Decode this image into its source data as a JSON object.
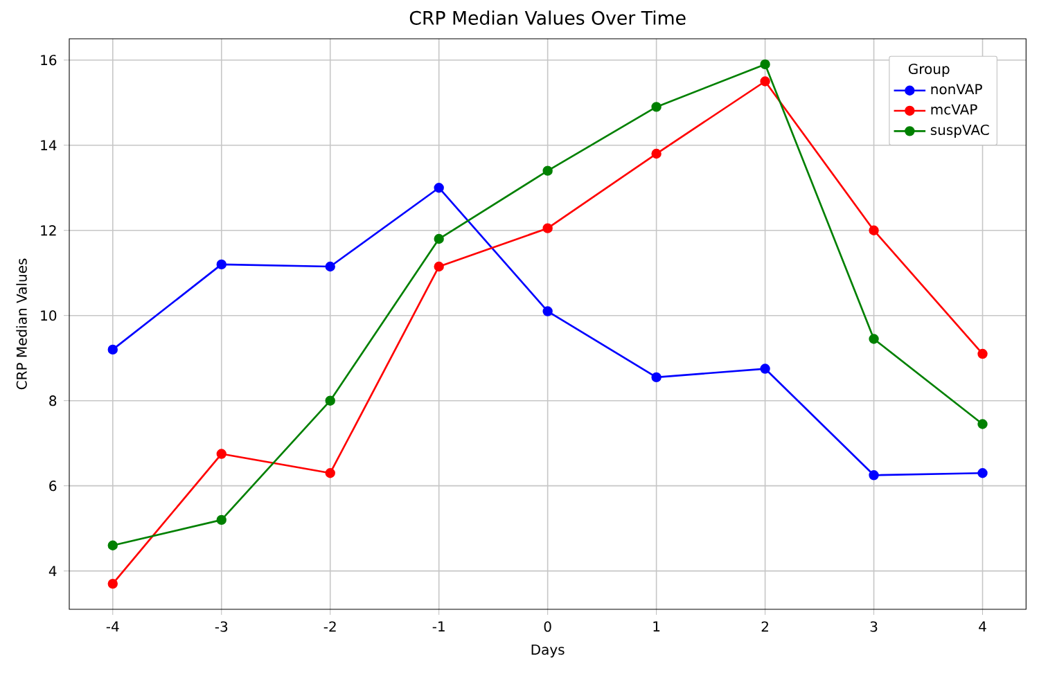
{
  "chart_data": {
    "type": "line",
    "title": "CRP Median Values Over Time",
    "xlabel": "Days",
    "ylabel": "CRP Median Values",
    "legend_title": "Group",
    "x": [
      -4,
      -3,
      -2,
      -1,
      0,
      1,
      2,
      3,
      4
    ],
    "series": [
      {
        "name": "nonVAP",
        "color": "#0000ff",
        "values": [
          9.2,
          11.2,
          11.15,
          13.0,
          10.1,
          8.55,
          8.75,
          6.25,
          6.3
        ]
      },
      {
        "name": "mcVAP",
        "color": "#ff0000",
        "values": [
          3.7,
          6.75,
          6.3,
          11.15,
          12.05,
          13.8,
          15.5,
          12.0,
          9.1
        ]
      },
      {
        "name": "suspVAC",
        "color": "#008000",
        "values": [
          4.6,
          5.2,
          8.0,
          11.8,
          13.4,
          14.9,
          15.9,
          9.45,
          7.45
        ]
      }
    ],
    "xlim": [
      -4.4,
      4.4
    ],
    "ylim": [
      3.1,
      16.5
    ],
    "xticks": [
      -4,
      -3,
      -2,
      -1,
      0,
      1,
      2,
      3,
      4
    ],
    "yticks": [
      4,
      6,
      8,
      10,
      12,
      14,
      16
    ],
    "grid": true,
    "legend": "top right",
    "marker": "circle",
    "line_style": "solid"
  }
}
